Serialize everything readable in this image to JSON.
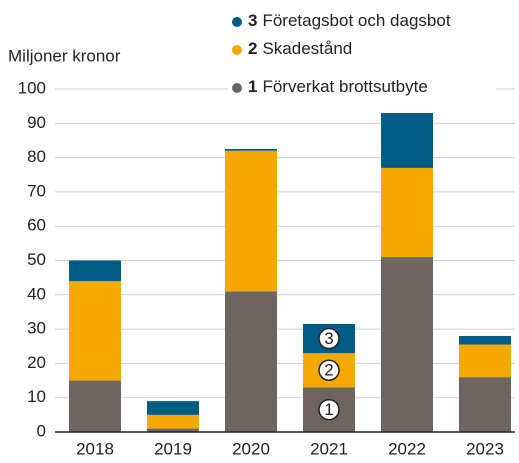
{
  "chart_data": {
    "type": "stacked_bar",
    "y_label": "Miljoner kronor",
    "categories": [
      "2018",
      "2019",
      "2020",
      "2021",
      "2022",
      "2023"
    ],
    "series": [
      {
        "number": "1",
        "name": "Förverkat brottsutbyte",
        "color": "#6e6560",
        "values": [
          15,
          1,
          41,
          13,
          51,
          16
        ]
      },
      {
        "number": "2",
        "name": "Skadestånd",
        "color": "#f5a800",
        "values": [
          29,
          4,
          41,
          10,
          26,
          9.5
        ]
      },
      {
        "number": "3",
        "name": "Företagsbot och dagsbot",
        "color": "#005b85",
        "values": [
          6,
          4,
          0.5,
          8.5,
          16,
          2.5
        ]
      }
    ],
    "annotated_category": 3,
    "ylim": [
      0,
      100
    ],
    "yticks": [
      0,
      10,
      20,
      30,
      40,
      50,
      60,
      70,
      80,
      90,
      100
    ],
    "grid": true
  }
}
